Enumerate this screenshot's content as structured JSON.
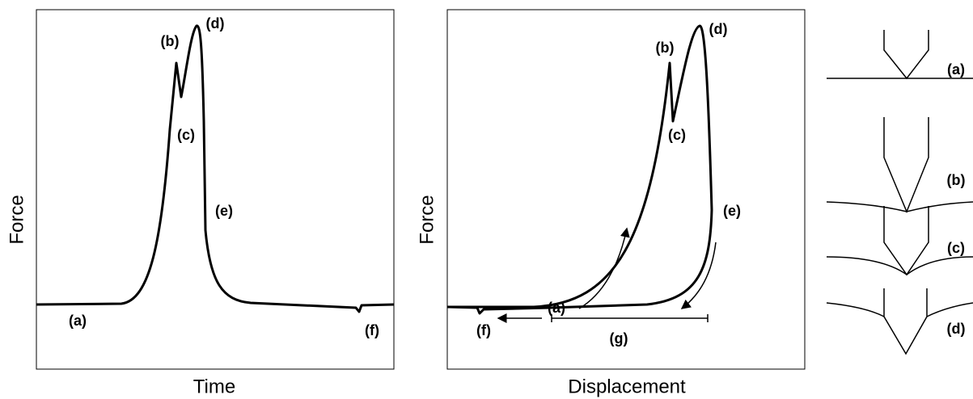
{
  "left_panel": {
    "y_label": "Force",
    "x_label": "Time",
    "labels": [
      "(b)",
      "(d)",
      "(c)",
      "(e)",
      "(a)",
      "(f)"
    ]
  },
  "middle_panel": {
    "y_label": "Force",
    "x_label": "Displacement",
    "labels": [
      "(b)",
      "(d)",
      "(c)",
      "(e)",
      "(a)",
      "(f)",
      "(g)"
    ]
  },
  "right_panel": {
    "labels": [
      "(a)",
      "(b)",
      "(c)",
      "(d)"
    ]
  }
}
